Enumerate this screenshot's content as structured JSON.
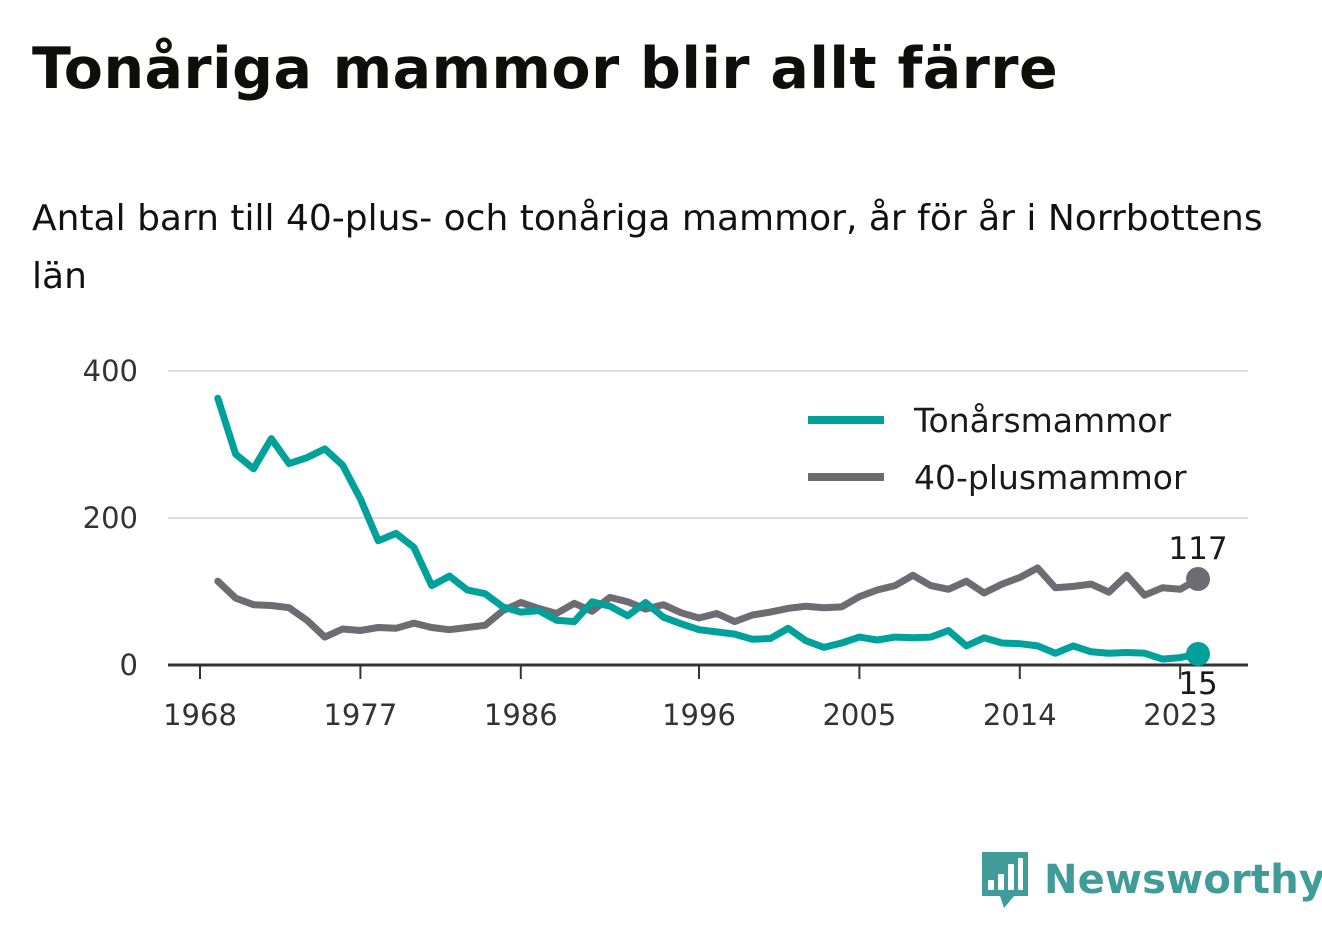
{
  "title": "Tonåriga mammor blir allt färre",
  "subtitle": "Antal barn till 40-plus- och tonåriga mammor, år för år i Norrbottens län",
  "logo": {
    "text": "Newsworthy",
    "icon": "bar-chart-speech-bubble-icon",
    "color": "#3f9c98"
  },
  "chart_data": {
    "type": "line",
    "title": "Tonåriga mammor blir allt färre",
    "subtitle": "Antal barn till 40-plus- och tonåriga mammor, år för år i Norrbottens län",
    "xlabel": "",
    "ylabel": "",
    "xlim": [
      1968,
      2024
    ],
    "ylim": [
      0,
      400
    ],
    "x_ticks": [
      "1968",
      "1977",
      "1986",
      "1996",
      "2005",
      "2014",
      "2023"
    ],
    "y_ticks": [
      "400",
      "200",
      "0"
    ],
    "grid": true,
    "legend_position": "top-right",
    "x": [
      1969,
      1970,
      1971,
      1972,
      1973,
      1974,
      1975,
      1976,
      1977,
      1978,
      1979,
      1980,
      1981,
      1982,
      1983,
      1984,
      1985,
      1986,
      1987,
      1988,
      1989,
      1990,
      1991,
      1992,
      1993,
      1994,
      1995,
      1996,
      1997,
      1998,
      1999,
      2000,
      2001,
      2002,
      2003,
      2004,
      2005,
      2006,
      2007,
      2008,
      2009,
      2010,
      2011,
      2012,
      2013,
      2014,
      2015,
      2016,
      2017,
      2018,
      2019,
      2020,
      2021,
      2022,
      2023,
      2024
    ],
    "series": [
      {
        "name": "Tonårsmammor",
        "color": "#00a19a",
        "values": [
          363,
          287,
          267,
          308,
          274,
          282,
          294,
          272,
          226,
          169,
          179,
          160,
          108,
          121,
          102,
          97,
          79,
          72,
          74,
          61,
          59,
          86,
          80,
          67,
          85,
          65,
          56,
          48,
          45,
          42,
          35,
          36,
          50,
          33,
          24,
          30,
          38,
          34,
          38,
          37,
          38,
          47,
          26,
          37,
          30,
          29,
          26,
          16,
          26,
          18,
          16,
          17,
          16,
          8,
          10,
          15
        ]
      },
      {
        "name": "40-plusmammor",
        "color": "#6d6c72",
        "values": [
          114,
          91,
          82,
          81,
          78,
          61,
          38,
          49,
          47,
          51,
          50,
          57,
          51,
          48,
          51,
          54,
          74,
          85,
          77,
          70,
          84,
          73,
          92,
          86,
          76,
          82,
          71,
          64,
          70,
          59,
          68,
          72,
          77,
          80,
          78,
          79,
          93,
          102,
          108,
          122,
          108,
          103,
          114,
          98,
          110,
          119,
          132,
          105,
          107,
          110,
          99,
          122,
          95,
          105,
          103,
          117
        ]
      }
    ],
    "end_labels": [
      {
        "series": "40-plusmammor",
        "label": "117"
      },
      {
        "series": "Tonårsmammor",
        "label": "15"
      }
    ]
  }
}
